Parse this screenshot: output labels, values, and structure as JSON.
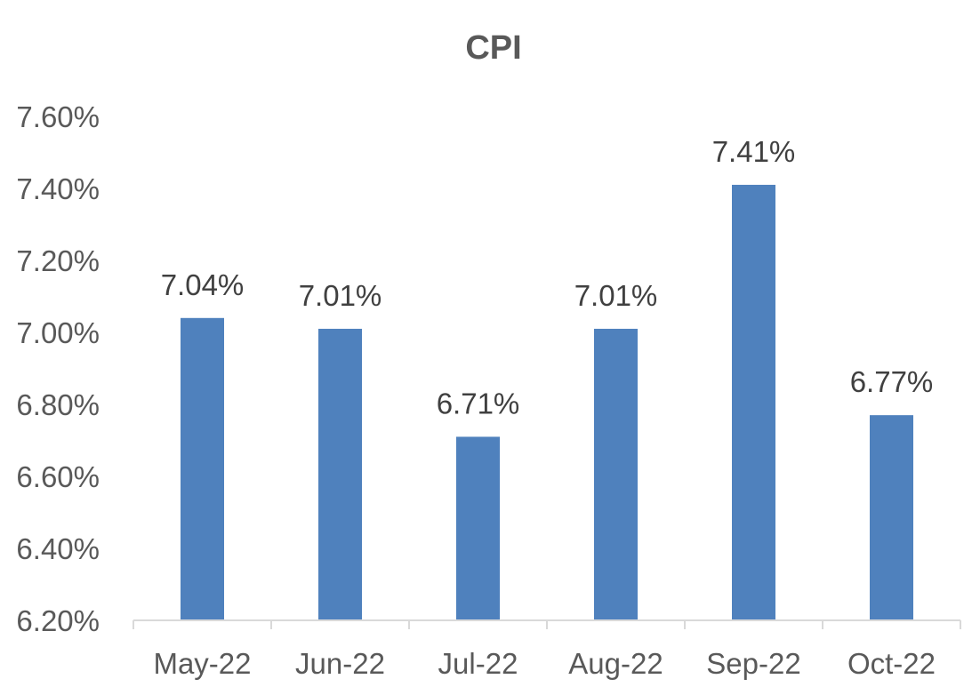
{
  "chart_data": {
    "type": "bar",
    "title": "CPI",
    "xlabel": "",
    "ylabel": "",
    "categories": [
      "May-22",
      "Jun-22",
      "Jul-22",
      "Aug-22",
      "Sep-22",
      "Oct-22"
    ],
    "values": [
      7.04,
      7.01,
      6.71,
      7.01,
      7.41,
      6.77
    ],
    "data_labels": [
      "7.04%",
      "7.01%",
      "6.71%",
      "7.01%",
      "7.41%",
      "6.77%"
    ],
    "ylim": [
      6.2,
      7.6
    ],
    "yticks": [
      6.2,
      6.4,
      6.6,
      6.8,
      7.0,
      7.2,
      7.4,
      7.6
    ],
    "ytick_labels": [
      "6.20%",
      "6.40%",
      "6.60%",
      "6.80%",
      "7.00%",
      "7.20%",
      "7.40%",
      "7.60%"
    ],
    "grid": false,
    "legend": "none",
    "bar_color": "#4f81bd"
  }
}
